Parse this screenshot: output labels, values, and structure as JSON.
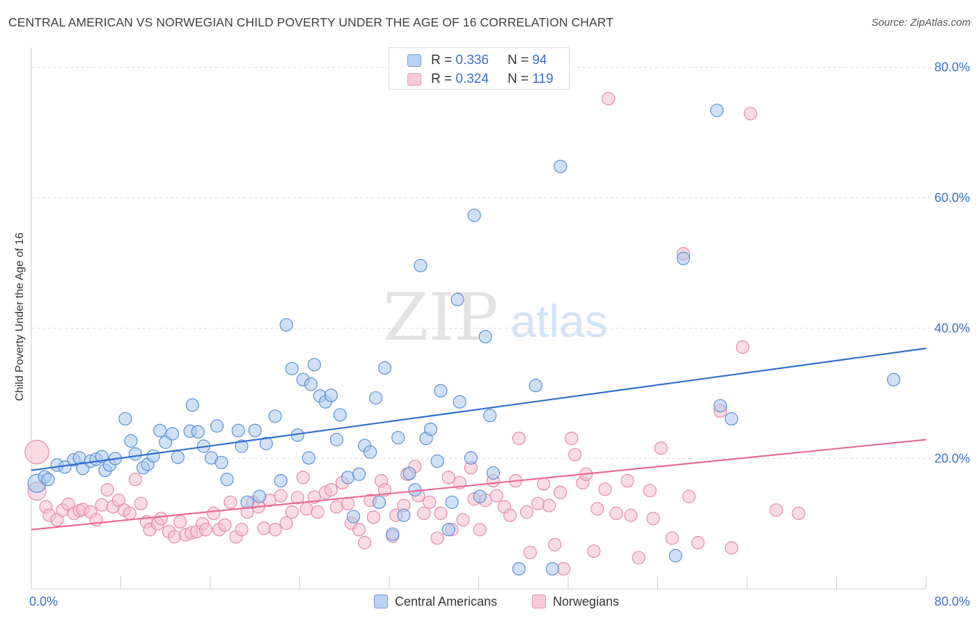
{
  "header": {
    "title": "CENTRAL AMERICAN VS NORWEGIAN CHILD POVERTY UNDER THE AGE OF 16 CORRELATION CHART",
    "source": "Source: ZipAtlas.com"
  },
  "watermark": {
    "zip": "ZIP",
    "atlas": "atlas"
  },
  "legend_top": {
    "r_label": "R =",
    "n_label": "N =",
    "rows": [
      {
        "r": "0.336",
        "n": "94"
      },
      {
        "r": "0.324",
        "n": "119"
      }
    ]
  },
  "legend_bottom": [
    "Central Americans",
    "Norwegians"
  ],
  "colors": {
    "blue_fill": "#a9c8f0",
    "blue_stroke": "#5b8fd6",
    "blue_line": "#2f6fce",
    "pink_fill": "#f7bfd0",
    "pink_stroke": "#e58aa8",
    "pink_line": "#e86a96",
    "tick_label": "#3a6fc4",
    "grid": "#dddddd"
  },
  "chart_data": {
    "type": "scatter",
    "title": "CENTRAL AMERICAN VS NORWEGIAN CHILD POVERTY UNDER THE AGE OF 16 CORRELATION CHART",
    "xlabel": "",
    "ylabel": "Child Poverty Under the Age of 16",
    "xlim": [
      0,
      80
    ],
    "ylim": [
      0,
      82
    ],
    "x_tick_labels": [
      {
        "value": 0,
        "label": "0.0%"
      },
      {
        "value": 80,
        "label": "80.0%"
      }
    ],
    "y_tick_labels": [
      {
        "value": 20,
        "label": "20.0%"
      },
      {
        "value": 40,
        "label": "40.0%"
      },
      {
        "value": 60,
        "label": "60.0%"
      },
      {
        "value": 80,
        "label": "80.0%"
      }
    ],
    "x_minor_ticks": [
      8,
      16,
      24,
      32,
      40,
      48,
      56,
      64,
      72,
      80
    ],
    "series": [
      {
        "name": "Central Americans",
        "color": "blue",
        "trend": {
          "x0": 0,
          "y0": 18.2,
          "x1": 80,
          "y1": 36.9
        },
        "points": [
          [
            0.5,
            16.2,
            "L"
          ],
          [
            1.2,
            17.2
          ],
          [
            1.5,
            16.8
          ],
          [
            2.3,
            19.0
          ],
          [
            3.0,
            18.7
          ],
          [
            3.8,
            19.8
          ],
          [
            4.3,
            20.1
          ],
          [
            4.6,
            18.5
          ],
          [
            5.3,
            19.6
          ],
          [
            5.8,
            19.9
          ],
          [
            6.3,
            20.3
          ],
          [
            6.6,
            18.2
          ],
          [
            7.0,
            19.0
          ],
          [
            7.5,
            20.0
          ],
          [
            8.4,
            26.1
          ],
          [
            8.9,
            22.7
          ],
          [
            9.3,
            20.7
          ],
          [
            10.0,
            18.6
          ],
          [
            10.4,
            19.1
          ],
          [
            10.9,
            20.4
          ],
          [
            11.5,
            24.3
          ],
          [
            12.0,
            22.5
          ],
          [
            12.6,
            23.8
          ],
          [
            13.1,
            20.2
          ],
          [
            14.2,
            24.2
          ],
          [
            14.4,
            28.2
          ],
          [
            14.9,
            24.1
          ],
          [
            15.4,
            21.9
          ],
          [
            16.1,
            20.1
          ],
          [
            16.6,
            25.0
          ],
          [
            17.0,
            19.4
          ],
          [
            17.5,
            16.8
          ],
          [
            18.5,
            24.3
          ],
          [
            18.8,
            21.9
          ],
          [
            19.3,
            13.3
          ],
          [
            20.0,
            24.3
          ],
          [
            20.4,
            14.2
          ],
          [
            21.0,
            22.3
          ],
          [
            21.8,
            26.5
          ],
          [
            22.3,
            16.6
          ],
          [
            22.8,
            40.5
          ],
          [
            23.3,
            33.8
          ],
          [
            23.8,
            23.6
          ],
          [
            24.3,
            32.1
          ],
          [
            24.8,
            20.1
          ],
          [
            25.0,
            31.4
          ],
          [
            25.3,
            34.4
          ],
          [
            25.8,
            29.6
          ],
          [
            26.3,
            28.7
          ],
          [
            26.8,
            29.7
          ],
          [
            27.3,
            22.9
          ],
          [
            27.6,
            26.7
          ],
          [
            28.3,
            17.1
          ],
          [
            28.8,
            11.1
          ],
          [
            29.3,
            17.6
          ],
          [
            29.8,
            22.0
          ],
          [
            30.3,
            21.0
          ],
          [
            30.8,
            29.3
          ],
          [
            31.1,
            13.3
          ],
          [
            31.6,
            33.9
          ],
          [
            32.3,
            8.4
          ],
          [
            32.8,
            23.2
          ],
          [
            33.3,
            11.3
          ],
          [
            33.8,
            17.7
          ],
          [
            34.3,
            15.2
          ],
          [
            34.8,
            49.6
          ],
          [
            35.3,
            23.1
          ],
          [
            35.7,
            24.5
          ],
          [
            36.3,
            19.6
          ],
          [
            36.6,
            30.4
          ],
          [
            37.3,
            9.1
          ],
          [
            37.6,
            13.3
          ],
          [
            38.1,
            44.4
          ],
          [
            38.3,
            28.7
          ],
          [
            39.3,
            20.1
          ],
          [
            39.6,
            57.3
          ],
          [
            40.1,
            14.2
          ],
          [
            40.6,
            38.7
          ],
          [
            41.0,
            26.6
          ],
          [
            41.3,
            17.8
          ],
          [
            43.6,
            3.1
          ],
          [
            45.1,
            31.2
          ],
          [
            46.6,
            3.1
          ],
          [
            47.3,
            64.8
          ],
          [
            57.6,
            5.1
          ],
          [
            58.3,
            50.7
          ],
          [
            61.3,
            73.4
          ],
          [
            61.6,
            28.1
          ],
          [
            62.6,
            26.1
          ],
          [
            77.1,
            32.1
          ]
        ]
      },
      {
        "name": "Norwegians",
        "color": "pink",
        "trend": {
          "x0": 0,
          "y0": 9.1,
          "x1": 80,
          "y1": 22.9
        },
        "points": [
          [
            0.5,
            21.0,
            "XL"
          ],
          [
            0.5,
            15.0,
            "L"
          ],
          [
            1.3,
            12.6
          ],
          [
            1.6,
            11.3
          ],
          [
            2.3,
            10.6
          ],
          [
            2.8,
            12.1
          ],
          [
            3.3,
            13.0
          ],
          [
            3.8,
            11.6
          ],
          [
            4.3,
            12.0
          ],
          [
            4.6,
            12.2
          ],
          [
            5.3,
            11.8
          ],
          [
            5.8,
            10.6
          ],
          [
            6.3,
            12.9
          ],
          [
            6.8,
            15.2
          ],
          [
            7.3,
            12.6
          ],
          [
            7.8,
            13.6
          ],
          [
            8.3,
            12.1
          ],
          [
            8.8,
            11.6
          ],
          [
            9.3,
            16.8
          ],
          [
            9.8,
            13.1
          ],
          [
            10.3,
            10.3
          ],
          [
            10.6,
            9.1
          ],
          [
            11.3,
            10.0
          ],
          [
            11.6,
            10.8
          ],
          [
            12.3,
            8.8
          ],
          [
            12.8,
            8.0
          ],
          [
            13.3,
            10.3
          ],
          [
            13.8,
            8.3
          ],
          [
            14.3,
            8.6
          ],
          [
            14.8,
            8.8
          ],
          [
            15.3,
            10.0
          ],
          [
            15.6,
            9.1
          ],
          [
            16.3,
            11.6
          ],
          [
            16.8,
            9.1
          ],
          [
            17.3,
            9.8
          ],
          [
            17.8,
            13.3
          ],
          [
            18.3,
            8.0
          ],
          [
            18.8,
            9.1
          ],
          [
            19.3,
            11.8
          ],
          [
            19.8,
            13.3
          ],
          [
            20.3,
            12.6
          ],
          [
            20.8,
            9.3
          ],
          [
            21.3,
            13.6
          ],
          [
            21.8,
            9.1
          ],
          [
            22.3,
            14.3
          ],
          [
            22.8,
            10.1
          ],
          [
            23.3,
            11.8
          ],
          [
            23.8,
            14.0
          ],
          [
            24.3,
            17.1
          ],
          [
            24.6,
            12.3
          ],
          [
            25.3,
            14.1
          ],
          [
            25.6,
            11.8
          ],
          [
            26.3,
            14.8
          ],
          [
            26.8,
            15.2
          ],
          [
            27.3,
            12.6
          ],
          [
            27.8,
            16.3
          ],
          [
            28.3,
            13.1
          ],
          [
            28.6,
            10.1
          ],
          [
            29.3,
            9.1
          ],
          [
            29.8,
            7.1
          ],
          [
            30.3,
            13.6
          ],
          [
            30.6,
            11.0
          ],
          [
            31.3,
            16.6
          ],
          [
            31.6,
            15.2
          ],
          [
            32.3,
            8.1
          ],
          [
            32.6,
            11.3
          ],
          [
            33.3,
            12.8
          ],
          [
            33.6,
            17.6
          ],
          [
            34.3,
            18.8
          ],
          [
            34.6,
            14.3
          ],
          [
            35.1,
            11.6
          ],
          [
            35.6,
            13.3
          ],
          [
            36.3,
            7.8
          ],
          [
            36.6,
            11.6
          ],
          [
            37.3,
            17.1
          ],
          [
            37.6,
            9.1
          ],
          [
            38.3,
            16.3
          ],
          [
            38.6,
            10.6
          ],
          [
            39.3,
            18.6
          ],
          [
            39.6,
            13.8
          ],
          [
            40.1,
            9.1
          ],
          [
            40.6,
            13.6
          ],
          [
            41.3,
            16.6
          ],
          [
            41.6,
            14.3
          ],
          [
            42.3,
            12.6
          ],
          [
            42.8,
            11.3
          ],
          [
            43.3,
            16.6
          ],
          [
            43.6,
            23.1
          ],
          [
            44.3,
            11.8
          ],
          [
            44.6,
            5.6
          ],
          [
            45.3,
            13.1
          ],
          [
            45.8,
            16.1
          ],
          [
            46.3,
            12.8
          ],
          [
            46.8,
            6.8
          ],
          [
            47.3,
            14.8
          ],
          [
            47.6,
            3.1
          ],
          [
            48.3,
            23.1
          ],
          [
            48.6,
            20.6
          ],
          [
            49.3,
            16.3
          ],
          [
            49.6,
            17.6
          ],
          [
            50.3,
            5.8
          ],
          [
            50.6,
            12.3
          ],
          [
            51.3,
            15.3
          ],
          [
            51.6,
            75.2
          ],
          [
            52.3,
            11.6
          ],
          [
            53.3,
            16.6
          ],
          [
            53.6,
            11.3
          ],
          [
            54.3,
            4.8
          ],
          [
            55.3,
            15.1
          ],
          [
            55.6,
            10.8
          ],
          [
            56.3,
            21.6
          ],
          [
            57.3,
            7.8
          ],
          [
            58.3,
            51.4
          ],
          [
            58.8,
            14.2
          ],
          [
            59.6,
            7.1
          ],
          [
            61.6,
            27.3
          ],
          [
            62.6,
            6.3
          ],
          [
            63.6,
            37.1
          ],
          [
            64.3,
            72.9
          ],
          [
            66.6,
            12.1
          ],
          [
            68.6,
            11.6
          ]
        ]
      }
    ]
  }
}
